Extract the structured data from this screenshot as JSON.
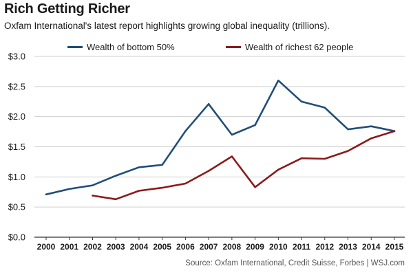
{
  "header": {
    "title": "Rich Getting Richer",
    "subtitle": "Oxfam International's latest report highlights growing global inequality (trillions)."
  },
  "footer": {
    "source": "Source: Oxfam International, Credit Suisse, Forbes  |  WSJ.com"
  },
  "chart_data": {
    "type": "line",
    "title": "Rich Getting Richer",
    "subtitle": "Oxfam International's latest report highlights growing global inequality (trillions).",
    "xlabel": "",
    "ylabel": "",
    "x": [
      "2000",
      "2001",
      "2002",
      "2003",
      "2004",
      "2005",
      "2006",
      "2007",
      "2008",
      "2009",
      "2010",
      "2011",
      "2012",
      "2013",
      "2014",
      "2015"
    ],
    "series": [
      {
        "name": "Wealth of bottom 50%",
        "color": "#1f4e79",
        "values": [
          0.71,
          0.8,
          0.86,
          1.02,
          1.16,
          1.2,
          1.76,
          2.21,
          1.7,
          1.86,
          2.6,
          2.25,
          2.15,
          1.79,
          1.84,
          1.76
        ]
      },
      {
        "name": "Wealth of richest 62 people",
        "color": "#8b1a1a",
        "values": [
          null,
          null,
          0.69,
          0.63,
          0.77,
          0.82,
          0.89,
          1.1,
          1.34,
          0.83,
          1.12,
          1.31,
          1.3,
          1.43,
          1.64,
          1.76
        ]
      }
    ],
    "ylim": [
      0,
      3.0
    ],
    "yticks": [
      0,
      0.5,
      1.0,
      1.5,
      2.0,
      2.5,
      3.0
    ],
    "ytick_labels": [
      "$0.0",
      "$0.5",
      "$1.0",
      "$1.5",
      "$2.0",
      "$2.5",
      "$3.0"
    ],
    "grid": "horizontal",
    "legend_position": "top"
  }
}
